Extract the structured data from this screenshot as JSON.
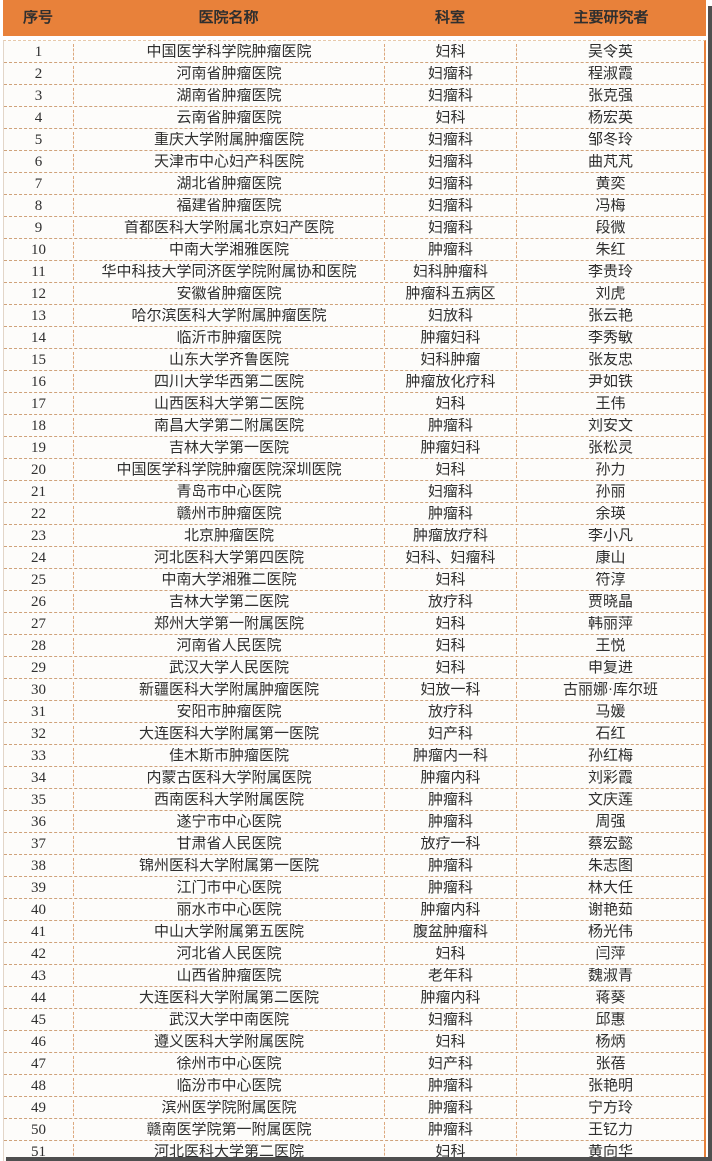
{
  "colors": {
    "header_background": "#e8813a",
    "header_text": "#ffffff",
    "row_background": "#fdfcfa",
    "dashed_divider": "#cfa27a",
    "right_border": "#e8813a",
    "body_text": "#2f2f2f",
    "edge_shadow": "#4f4f4f"
  },
  "table": {
    "columns": [
      {
        "key": "no",
        "label": "序号"
      },
      {
        "key": "hospital",
        "label": "医院名称"
      },
      {
        "key": "department",
        "label": "科室"
      },
      {
        "key": "investigator",
        "label": "主要研究者"
      }
    ],
    "rows": [
      {
        "no": "1",
        "hospital": "中国医学科学院肿瘤医院",
        "department": "妇科",
        "investigator": "吴令英"
      },
      {
        "no": "2",
        "hospital": "河南省肿瘤医院",
        "department": "妇瘤科",
        "investigator": "程淑霞"
      },
      {
        "no": "3",
        "hospital": "湖南省肿瘤医院",
        "department": "妇瘤科",
        "investigator": "张克强"
      },
      {
        "no": "4",
        "hospital": "云南省肿瘤医院",
        "department": "妇科",
        "investigator": "杨宏英"
      },
      {
        "no": "5",
        "hospital": "重庆大学附属肿瘤医院",
        "department": "妇瘤科",
        "investigator": "邹冬玲"
      },
      {
        "no": "6",
        "hospital": "天津市中心妇产科医院",
        "department": "妇瘤科",
        "investigator": "曲芃芃"
      },
      {
        "no": "7",
        "hospital": "湖北省肿瘤医院",
        "department": "妇瘤科",
        "investigator": "黄奕"
      },
      {
        "no": "8",
        "hospital": "福建省肿瘤医院",
        "department": "妇瘤科",
        "investigator": "冯梅"
      },
      {
        "no": "9",
        "hospital": "首都医科大学附属北京妇产医院",
        "department": "妇瘤科",
        "investigator": "段微"
      },
      {
        "no": "10",
        "hospital": "中南大学湘雅医院",
        "department": "肿瘤科",
        "investigator": "朱红"
      },
      {
        "no": "11",
        "hospital": "华中科技大学同济医学院附属协和医院",
        "department": "妇科肿瘤科",
        "investigator": "李贵玲"
      },
      {
        "no": "12",
        "hospital": "安徽省肿瘤医院",
        "department": "肿瘤科五病区",
        "investigator": "刘虎"
      },
      {
        "no": "13",
        "hospital": "哈尔滨医科大学附属肿瘤医院",
        "department": "妇放科",
        "investigator": "张云艳"
      },
      {
        "no": "14",
        "hospital": "临沂市肿瘤医院",
        "department": "肿瘤妇科",
        "investigator": "李秀敏"
      },
      {
        "no": "15",
        "hospital": "山东大学齐鲁医院",
        "department": "妇科肿瘤",
        "investigator": "张友忠"
      },
      {
        "no": "16",
        "hospital": "四川大学华西第二医院",
        "department": "肿瘤放化疗科",
        "investigator": "尹如铁"
      },
      {
        "no": "17",
        "hospital": "山西医科大学第二医院",
        "department": "妇科",
        "investigator": "王伟"
      },
      {
        "no": "18",
        "hospital": "南昌大学第二附属医院",
        "department": "肿瘤科",
        "investigator": "刘安文"
      },
      {
        "no": "19",
        "hospital": "吉林大学第一医院",
        "department": "肿瘤妇科",
        "investigator": "张松灵"
      },
      {
        "no": "20",
        "hospital": "中国医学科学院肿瘤医院深圳医院",
        "department": "妇科",
        "investigator": "孙力"
      },
      {
        "no": "21",
        "hospital": "青岛市中心医院",
        "department": "妇瘤科",
        "investigator": "孙丽"
      },
      {
        "no": "22",
        "hospital": "赣州市肿瘤医院",
        "department": "肿瘤科",
        "investigator": "余瑛"
      },
      {
        "no": "23",
        "hospital": "北京肿瘤医院",
        "department": "肿瘤放疗科",
        "investigator": "李小凡"
      },
      {
        "no": "24",
        "hospital": "河北医科大学第四医院",
        "department": "妇科、妇瘤科",
        "investigator": "康山"
      },
      {
        "no": "25",
        "hospital": "中南大学湘雅二医院",
        "department": "妇科",
        "investigator": "符淳"
      },
      {
        "no": "26",
        "hospital": "吉林大学第二医院",
        "department": "放疗科",
        "investigator": "贾晓晶"
      },
      {
        "no": "27",
        "hospital": "郑州大学第一附属医院",
        "department": "妇科",
        "investigator": "韩丽萍"
      },
      {
        "no": "28",
        "hospital": "河南省人民医院",
        "department": "妇科",
        "investigator": "王悦"
      },
      {
        "no": "29",
        "hospital": "武汉大学人民医院",
        "department": "妇科",
        "investigator": "申复进"
      },
      {
        "no": "30",
        "hospital": "新疆医科大学附属肿瘤医院",
        "department": "妇放一科",
        "investigator": "古丽娜·库尔班"
      },
      {
        "no": "31",
        "hospital": "安阳市肿瘤医院",
        "department": "放疗科",
        "investigator": "马媛"
      },
      {
        "no": "32",
        "hospital": "大连医科大学附属第一医院",
        "department": "妇产科",
        "investigator": "石红"
      },
      {
        "no": "33",
        "hospital": "佳木斯市肿瘤医院",
        "department": "肿瘤内一科",
        "investigator": "孙红梅"
      },
      {
        "no": "34",
        "hospital": "内蒙古医科大学附属医院",
        "department": "肿瘤内科",
        "investigator": "刘彩霞"
      },
      {
        "no": "35",
        "hospital": "西南医科大学附属医院",
        "department": "肿瘤科",
        "investigator": "文庆莲"
      },
      {
        "no": "36",
        "hospital": "遂宁市中心医院",
        "department": "肿瘤科",
        "investigator": "周强"
      },
      {
        "no": "37",
        "hospital": "甘肃省人民医院",
        "department": "放疗一科",
        "investigator": "蔡宏懿"
      },
      {
        "no": "38",
        "hospital": "锦州医科大学附属第一医院",
        "department": "肿瘤科",
        "investigator": "朱志图"
      },
      {
        "no": "39",
        "hospital": "江门市中心医院",
        "department": "肿瘤科",
        "investigator": "林大任"
      },
      {
        "no": "40",
        "hospital": "丽水市中心医院",
        "department": "肿瘤内科",
        "investigator": "谢艳茹"
      },
      {
        "no": "41",
        "hospital": "中山大学附属第五医院",
        "department": "腹盆肿瘤科",
        "investigator": "杨光伟"
      },
      {
        "no": "42",
        "hospital": "河北省人民医院",
        "department": "妇科",
        "investigator": "闫萍"
      },
      {
        "no": "43",
        "hospital": "山西省肿瘤医院",
        "department": "老年科",
        "investigator": "魏淑青"
      },
      {
        "no": "44",
        "hospital": "大连医科大学附属第二医院",
        "department": "肿瘤内科",
        "investigator": "蒋葵"
      },
      {
        "no": "45",
        "hospital": "武汉大学中南医院",
        "department": "妇瘤科",
        "investigator": "邱惠"
      },
      {
        "no": "46",
        "hospital": "遵义医科大学附属医院",
        "department": "妇科",
        "investigator": "杨炳"
      },
      {
        "no": "47",
        "hospital": "徐州市中心医院",
        "department": "妇产科",
        "investigator": "张蓓"
      },
      {
        "no": "48",
        "hospital": "临汾市中心医院",
        "department": "肿瘤科",
        "investigator": "张艳明"
      },
      {
        "no": "49",
        "hospital": "滨州医学院附属医院",
        "department": "肿瘤科",
        "investigator": "宁方玲"
      },
      {
        "no": "50",
        "hospital": "赣南医学院第一附属医院",
        "department": "肿瘤科",
        "investigator": "王钇力"
      },
      {
        "no": "51",
        "hospital": "河北医科大学第二医院",
        "department": "妇科",
        "investigator": "黄向华"
      }
    ]
  }
}
